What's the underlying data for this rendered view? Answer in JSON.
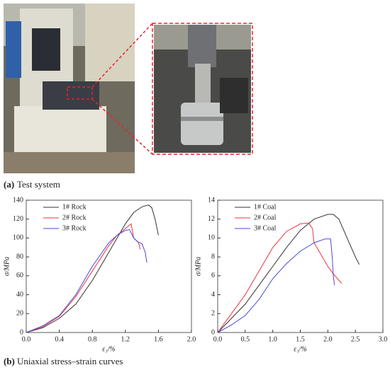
{
  "figure": {
    "panel_a_label": "(a)",
    "panel_a_caption": "Test system",
    "panel_b_label": "(b)",
    "panel_b_caption": "Uniaxial stress–strain curves"
  },
  "chart_data": [
    {
      "type": "line",
      "y_label": "σ/MPa",
      "x_label": "ε₁/%",
      "xlim": [
        0,
        2.0
      ],
      "xticks": [
        {
          "value": 0,
          "label": "0.0"
        },
        {
          "value": 0.4,
          "label": "0.4"
        },
        {
          "value": 0.8,
          "label": "0.8"
        },
        {
          "value": 1.2,
          "label": "1.2"
        },
        {
          "value": 1.6,
          "label": "1.6"
        },
        {
          "value": 2.0,
          "label": "2.0"
        }
      ],
      "ylim": [
        0,
        140
      ],
      "yticks": [
        0,
        20,
        40,
        60,
        80,
        100,
        120,
        140
      ],
      "legend": "upper-left",
      "series": [
        {
          "name": "1# Rock",
          "color": "#333333",
          "x": [
            0,
            0.2,
            0.4,
            0.6,
            0.8,
            1.0,
            1.1,
            1.2,
            1.3,
            1.4,
            1.48,
            1.52,
            1.56,
            1.6
          ],
          "values": [
            0,
            5,
            15,
            30,
            55,
            85,
            100,
            115,
            127,
            133,
            135,
            132,
            120,
            103
          ]
        },
        {
          "name": "2# Rock",
          "color": "#f0323c",
          "x": [
            0,
            0.2,
            0.4,
            0.6,
            0.8,
            1.0,
            1.1,
            1.2,
            1.27,
            1.3,
            1.36,
            1.38
          ],
          "values": [
            0,
            6,
            17,
            38,
            65,
            92,
            103,
            110,
            115,
            100,
            95,
            88
          ]
        },
        {
          "name": "3# Rock",
          "color": "#4a4ae0",
          "x": [
            0,
            0.2,
            0.4,
            0.6,
            0.8,
            1.0,
            1.1,
            1.2,
            1.25,
            1.3,
            1.35,
            1.4,
            1.44,
            1.46
          ],
          "values": [
            0,
            7,
            18,
            40,
            70,
            95,
            103,
            108,
            109,
            100,
            96,
            94,
            85,
            74
          ]
        }
      ]
    },
    {
      "type": "line",
      "y_label": "σ/MPa",
      "x_label": "ε₁/%",
      "xlim": [
        0,
        3.0
      ],
      "xticks": [
        {
          "value": 0,
          "label": "0.0"
        },
        {
          "value": 0.5,
          "label": "0.5"
        },
        {
          "value": 1.0,
          "label": "1.0"
        },
        {
          "value": 1.5,
          "label": "1.5"
        },
        {
          "value": 2.0,
          "label": "2.0"
        },
        {
          "value": 2.5,
          "label": "2.5"
        },
        {
          "value": 3.0,
          "label": "3.0"
        }
      ],
      "ylim": [
        0,
        14
      ],
      "yticks": [
        0,
        2,
        4,
        6,
        8,
        10,
        12,
        14
      ],
      "legend": "upper-left",
      "series": [
        {
          "name": "1# Coal",
          "color": "#333333",
          "x": [
            0,
            0.25,
            0.5,
            0.75,
            1.0,
            1.25,
            1.5,
            1.75,
            2.0,
            2.1,
            2.2,
            2.35,
            2.5,
            2.57
          ],
          "values": [
            0,
            1.5,
            3,
            5,
            7,
            9,
            10.8,
            12,
            12.5,
            12.5,
            12,
            10,
            8,
            7.2
          ]
        },
        {
          "name": "2# Coal",
          "color": "#f0323c",
          "x": [
            0,
            0.25,
            0.5,
            0.75,
            1.0,
            1.25,
            1.5,
            1.65,
            1.72,
            1.75,
            1.85,
            2.0,
            2.1,
            2.25
          ],
          "values": [
            0,
            2,
            4,
            6.5,
            9,
            10.7,
            11.5,
            11.6,
            11,
            9.5,
            8.5,
            7,
            6.2,
            5.2
          ]
        },
        {
          "name": "3# Coal",
          "color": "#4a4ae0",
          "x": [
            0,
            0.25,
            0.5,
            0.75,
            1.0,
            1.25,
            1.5,
            1.75,
            1.95,
            2.05,
            2.08,
            2.1,
            2.12
          ],
          "values": [
            0,
            0.8,
            1.8,
            3.5,
            5.7,
            7.3,
            8.6,
            9.5,
            9.9,
            9.9,
            8,
            6,
            5
          ]
        }
      ]
    }
  ]
}
